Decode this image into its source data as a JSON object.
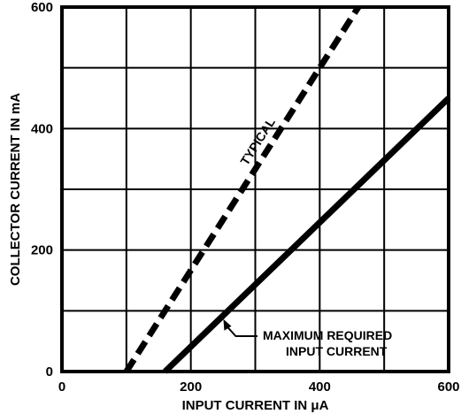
{
  "chart_data": {
    "type": "line",
    "xlabel": "INPUT CURRENT IN μA",
    "ylabel": "COLLECTOR CURRENT IN mA",
    "xlim": [
      0,
      600
    ],
    "ylim": [
      0,
      600
    ],
    "x_ticks": [
      0,
      200,
      400,
      600
    ],
    "y_ticks": [
      0,
      200,
      400,
      600
    ],
    "x_tick_labels": [
      "0",
      "200",
      "400",
      "600"
    ],
    "y_tick_labels": [
      "0",
      "200",
      "400",
      "600"
    ],
    "grid": true,
    "grid_step": 100,
    "series": [
      {
        "name": "TYPICAL",
        "style": "dashed",
        "x": [
          100,
          460
        ],
        "y": [
          0,
          600
        ]
      },
      {
        "name": "MAXIMUM REQUIRED INPUT CURRENT",
        "style": "solid",
        "x": [
          160,
          600
        ],
        "y": [
          0,
          450
        ]
      }
    ],
    "annotations": [
      {
        "id": "typical",
        "text": "TYPICAL",
        "series": 0
      },
      {
        "id": "max",
        "lines": [
          "MAXIMUM REQUIRED",
          "INPUT CURRENT"
        ],
        "series": 1,
        "arrow_target": [
          245,
          95
        ]
      }
    ]
  }
}
